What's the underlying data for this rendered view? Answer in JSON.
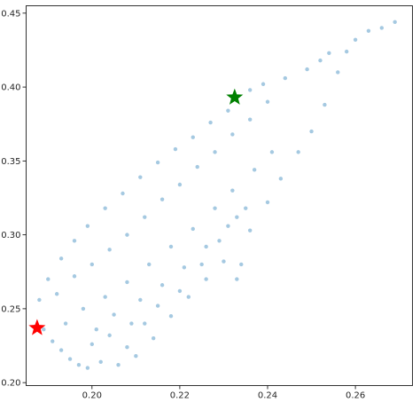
{
  "chart_data": {
    "type": "scatter",
    "title": "",
    "xlabel": "",
    "ylabel": "",
    "xlim": [
      0.185,
      0.273
    ],
    "ylim": [
      0.198,
      0.455
    ],
    "x_ticks": [
      {
        "value": 0.2,
        "label": "0.20"
      },
      {
        "value": 0.22,
        "label": "0.22"
      },
      {
        "value": 0.24,
        "label": "0.24"
      },
      {
        "value": 0.26,
        "label": "0.26"
      }
    ],
    "y_ticks": [
      {
        "value": 0.2,
        "label": "0.20"
      },
      {
        "value": 0.25,
        "label": "0.25"
      },
      {
        "value": 0.3,
        "label": "0.30"
      },
      {
        "value": 0.35,
        "label": "0.35"
      },
      {
        "value": 0.4,
        "label": "0.40"
      },
      {
        "value": 0.45,
        "label": "0.45"
      }
    ],
    "grid": false,
    "series": [
      {
        "marker": "dot",
        "color": "#1f77b4",
        "opacity": 0.4,
        "points": [
          [
            0.187,
            0.238
          ],
          [
            0.189,
            0.236
          ],
          [
            0.191,
            0.228
          ],
          [
            0.193,
            0.222
          ],
          [
            0.195,
            0.216
          ],
          [
            0.197,
            0.212
          ],
          [
            0.199,
            0.21
          ],
          [
            0.202,
            0.214
          ],
          [
            0.206,
            0.212
          ],
          [
            0.208,
            0.224
          ],
          [
            0.21,
            0.218
          ],
          [
            0.214,
            0.23
          ],
          [
            0.212,
            0.24
          ],
          [
            0.218,
            0.245
          ],
          [
            0.222,
            0.258
          ],
          [
            0.226,
            0.27
          ],
          [
            0.23,
            0.282
          ],
          [
            0.233,
            0.27
          ],
          [
            0.234,
            0.28
          ],
          [
            0.236,
            0.303
          ],
          [
            0.24,
            0.322
          ],
          [
            0.243,
            0.338
          ],
          [
            0.247,
            0.356
          ],
          [
            0.25,
            0.37
          ],
          [
            0.253,
            0.388
          ],
          [
            0.256,
            0.41
          ],
          [
            0.258,
            0.424
          ],
          [
            0.26,
            0.432
          ],
          [
            0.263,
            0.438
          ],
          [
            0.266,
            0.44
          ],
          [
            0.269,
            0.444
          ],
          [
            0.252,
            0.418
          ],
          [
            0.254,
            0.423
          ],
          [
            0.249,
            0.412
          ],
          [
            0.244,
            0.406
          ],
          [
            0.239,
            0.402
          ],
          [
            0.236,
            0.398
          ],
          [
            0.231,
            0.384
          ],
          [
            0.227,
            0.376
          ],
          [
            0.223,
            0.366
          ],
          [
            0.219,
            0.358
          ],
          [
            0.215,
            0.349
          ],
          [
            0.211,
            0.339
          ],
          [
            0.207,
            0.328
          ],
          [
            0.203,
            0.318
          ],
          [
            0.199,
            0.306
          ],
          [
            0.196,
            0.296
          ],
          [
            0.193,
            0.284
          ],
          [
            0.19,
            0.27
          ],
          [
            0.188,
            0.256
          ],
          [
            0.192,
            0.26
          ],
          [
            0.196,
            0.272
          ],
          [
            0.2,
            0.28
          ],
          [
            0.204,
            0.29
          ],
          [
            0.208,
            0.3
          ],
          [
            0.212,
            0.312
          ],
          [
            0.216,
            0.324
          ],
          [
            0.22,
            0.334
          ],
          [
            0.224,
            0.346
          ],
          [
            0.228,
            0.356
          ],
          [
            0.232,
            0.368
          ],
          [
            0.236,
            0.378
          ],
          [
            0.24,
            0.39
          ],
          [
            0.198,
            0.25
          ],
          [
            0.203,
            0.258
          ],
          [
            0.208,
            0.268
          ],
          [
            0.213,
            0.28
          ],
          [
            0.218,
            0.292
          ],
          [
            0.223,
            0.304
          ],
          [
            0.228,
            0.318
          ],
          [
            0.232,
            0.33
          ],
          [
            0.237,
            0.344
          ],
          [
            0.241,
            0.356
          ],
          [
            0.194,
            0.24
          ],
          [
            0.201,
            0.236
          ],
          [
            0.205,
            0.246
          ],
          [
            0.211,
            0.256
          ],
          [
            0.216,
            0.266
          ],
          [
            0.221,
            0.278
          ],
          [
            0.226,
            0.292
          ],
          [
            0.231,
            0.306
          ],
          [
            0.235,
            0.318
          ],
          [
            0.2,
            0.226
          ],
          [
            0.204,
            0.232
          ],
          [
            0.209,
            0.24
          ],
          [
            0.215,
            0.252
          ],
          [
            0.22,
            0.262
          ],
          [
            0.225,
            0.28
          ],
          [
            0.229,
            0.296
          ],
          [
            0.233,
            0.312
          ]
        ]
      },
      {
        "marker": "star",
        "color": "#ff0000",
        "points": [
          [
            0.1875,
            0.237
          ]
        ]
      },
      {
        "marker": "star",
        "color": "#008000",
        "points": [
          [
            0.2325,
            0.393
          ]
        ]
      }
    ]
  }
}
